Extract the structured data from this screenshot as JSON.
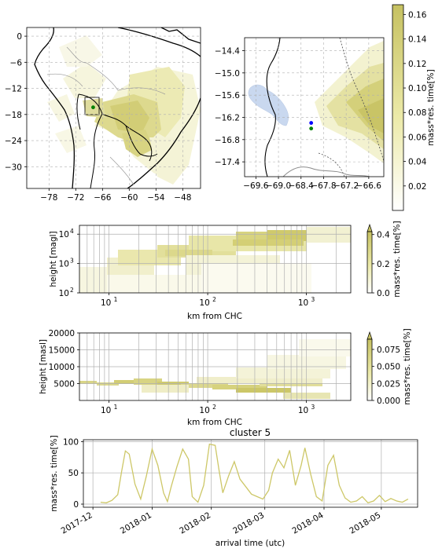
{
  "chart_data": [
    {
      "type": "heatmap",
      "panel": "map-overview",
      "x_ticks": [
        "−78",
        "−72",
        "−66",
        "−60",
        "−54",
        "−48"
      ],
      "x_tick_values": [
        -78,
        -72,
        -66,
        -60,
        -54,
        -48
      ],
      "y_ticks": [
        "0",
        "−6",
        "−12",
        "−18",
        "−24",
        "−30"
      ],
      "y_tick_values": [
        0,
        -6,
        -12,
        -18,
        -24,
        -30
      ],
      "xlim": [
        -83,
        -44
      ],
      "ylim": [
        -35,
        2
      ],
      "station": {
        "lon": -68.1,
        "lat": -16.35
      },
      "grid": true
    },
    {
      "type": "heatmap",
      "panel": "map-zoom",
      "x_ticks": [
        "−69.6",
        "−69.0",
        "−68.4",
        "−67.8",
        "−67.2",
        "−66.6"
      ],
      "x_tick_values": [
        -69.6,
        -69.0,
        -68.4,
        -67.8,
        -67.2,
        -66.6
      ],
      "y_ticks": [
        "−14.4",
        "−15.0",
        "−15.6",
        "−16.2",
        "−16.8",
        "−17.4"
      ],
      "y_tick_values": [
        -14.4,
        -15.0,
        -15.6,
        -16.2,
        -16.8,
        -17.4
      ],
      "xlim": [
        -69.9,
        -66.2
      ],
      "ylim": [
        -17.8,
        -14.05
      ],
      "points": [
        {
          "lon": -68.13,
          "lat": -16.35,
          "color": "#0000ff"
        },
        {
          "lon": -68.13,
          "lat": -16.5,
          "color": "#008000"
        }
      ],
      "colorbar": {
        "label": "mass*res. time[%]",
        "ticks": [
          "0.02",
          "0.04",
          "0.06",
          "0.08",
          "0.10",
          "0.12",
          "0.14",
          "0.16"
        ],
        "range": [
          0,
          0.168
        ]
      },
      "grid": true
    },
    {
      "type": "heatmap",
      "panel": "height-agl",
      "xlabel": "km from CHC",
      "ylabel": "height [magl]",
      "x_scale": "log",
      "y_scale": "log",
      "x_ticks": [
        "10",
        "10",
        "10"
      ],
      "x_tick_exps": [
        "1",
        "2",
        "3"
      ],
      "y_ticks": [
        "10",
        "10",
        "10"
      ],
      "y_tick_exps": [
        "2",
        "3",
        "4"
      ],
      "colorbar": {
        "label": "mass*res. time[%]",
        "ticks": [
          "0.0",
          "0.2",
          "0.4"
        ],
        "range": [
          0,
          0.42
        ],
        "extend": "max"
      },
      "grid": true
    },
    {
      "type": "heatmap",
      "panel": "height-asl",
      "xlabel": "km from CHC",
      "ylabel": "height [masl]",
      "x_scale": "log",
      "x_ticks": [
        "10",
        "10",
        "10"
      ],
      "x_tick_exps": [
        "1",
        "2",
        "3"
      ],
      "y_ticks": [
        "5000",
        "10000",
        "15000",
        "20000"
      ],
      "y_tick_values": [
        5000,
        10000,
        15000,
        20000
      ],
      "ylim": [
        0,
        20000
      ],
      "colorbar": {
        "label": "mass*res. time[%]",
        "ticks": [
          "0.000",
          "0.025",
          "0.050",
          "0.075"
        ],
        "range": [
          0,
          0.09
        ],
        "extend": "max"
      },
      "grid": true
    },
    {
      "type": "line",
      "panel": "timeseries",
      "title": "cluster 5",
      "xlabel": "arrival time (utc)",
      "ylabel": "mass*res. time[%]",
      "x_ticks": [
        "2017-12",
        "2018-01",
        "2018-02",
        "2018-03",
        "2018-04",
        "2018-05"
      ],
      "y_ticks": [
        "0",
        "50",
        "100"
      ],
      "y_tick_values": [
        0,
        50,
        100
      ],
      "ylim": [
        -5,
        103
      ],
      "series": [
        {
          "color": "#cdc767",
          "x": [
            "2017-12-05",
            "2017-12-08",
            "2017-12-11",
            "2017-12-14",
            "2017-12-16",
            "2017-12-18",
            "2017-12-20",
            "2017-12-23",
            "2017-12-26",
            "2017-12-29",
            "2018-01-01",
            "2018-01-04",
            "2018-01-07",
            "2018-01-09",
            "2018-01-11",
            "2018-01-14",
            "2018-01-17",
            "2018-01-20",
            "2018-01-22",
            "2018-01-25",
            "2018-01-28",
            "2018-01-31",
            "2018-02-03",
            "2018-02-05",
            "2018-02-07",
            "2018-02-10",
            "2018-02-13",
            "2018-02-16",
            "2018-02-19",
            "2018-02-22",
            "2018-02-25",
            "2018-02-28",
            "2018-03-03",
            "2018-03-05",
            "2018-03-08",
            "2018-03-11",
            "2018-03-14",
            "2018-03-17",
            "2018-03-20",
            "2018-03-22",
            "2018-03-25",
            "2018-03-28",
            "2018-03-31",
            "2018-04-03",
            "2018-04-06",
            "2018-04-09",
            "2018-04-12",
            "2018-04-15",
            "2018-04-18",
            "2018-04-21",
            "2018-04-24",
            "2018-04-27",
            "2018-04-30",
            "2018-05-03",
            "2018-05-06",
            "2018-05-09",
            "2018-05-12",
            "2018-05-15"
          ],
          "values": [
            3,
            2,
            6,
            15,
            52,
            85,
            80,
            32,
            8,
            45,
            88,
            62,
            18,
            4,
            28,
            60,
            88,
            72,
            12,
            3,
            30,
            96,
            94,
            55,
            18,
            45,
            68,
            40,
            28,
            16,
            12,
            8,
            22,
            50,
            72,
            58,
            86,
            30,
            62,
            90,
            48,
            12,
            5,
            62,
            78,
            30,
            10,
            3,
            5,
            12,
            2,
            5,
            14,
            4,
            9,
            5,
            3,
            8
          ]
        }
      ],
      "grid": true
    }
  ]
}
